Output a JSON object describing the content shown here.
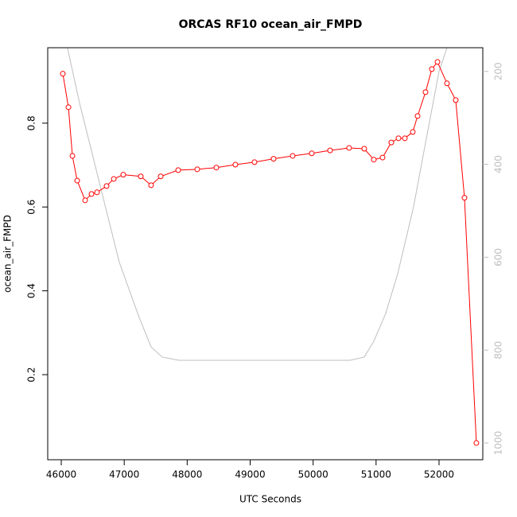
{
  "chart_data": {
    "type": "line",
    "title": "ORCAS RF10 ocean_air_FMPD",
    "x_label": "UTC Seconds",
    "y_label": "ocean_air_FMPD",
    "xlim": [
      45785,
      52695
    ],
    "xticks": [
      46000,
      47000,
      48000,
      49000,
      50000,
      51000,
      52000
    ],
    "ylim": [
      -0.003,
      0.98
    ],
    "yticks": [
      0.2,
      0.4,
      0.6,
      0.8
    ],
    "y2lim": [
      1036,
      149
    ],
    "y2ticks": [
      200,
      400,
      600,
      800,
      1000
    ],
    "series": [
      {
        "color": "#ff0000",
        "marker": "circle",
        "x": [
          46025,
          46114,
          46177,
          46253,
          46379,
          46480,
          46568,
          46720,
          46834,
          46985,
          47263,
          47427,
          47579,
          47857,
          48160,
          48463,
          48766,
          49069,
          49372,
          49675,
          49979,
          50269,
          50572,
          50812,
          50964,
          51103,
          51242,
          51356,
          51457,
          51583,
          51659,
          51785,
          51886,
          51975,
          52126,
          52265,
          52404,
          52593
        ],
        "values": [
          0.918,
          0.838,
          0.722,
          0.663,
          0.616,
          0.631,
          0.635,
          0.65,
          0.667,
          0.677,
          0.673,
          0.652,
          0.673,
          0.688,
          0.69,
          0.694,
          0.701,
          0.707,
          0.715,
          0.722,
          0.728,
          0.735,
          0.741,
          0.739,
          0.713,
          0.718,
          0.754,
          0.764,
          0.764,
          0.779,
          0.817,
          0.874,
          0.929,
          0.946,
          0.895,
          0.855,
          0.622,
          0.037
        ]
      },
      {
        "color": "#bebebe",
        "axis": "y2",
        "x": [
          46100,
          46290,
          46480,
          46669,
          46922,
          47238,
          47427,
          47604,
          47870,
          50585,
          50812,
          50964,
          51153,
          51343,
          51596,
          51785,
          52000,
          52126
        ],
        "values": [
          150,
          268,
          371,
          474,
          611,
          730,
          793,
          815,
          822,
          822,
          815,
          781,
          721,
          636,
          491,
          354,
          200,
          149
        ]
      }
    ]
  }
}
